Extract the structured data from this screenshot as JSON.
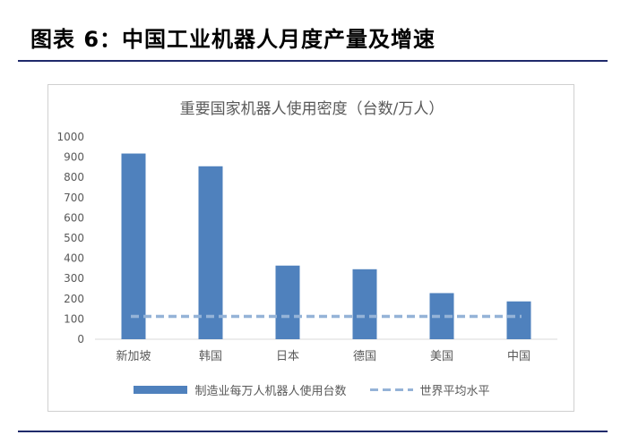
{
  "figure_title": "图表 6：中国工业机器人月度产量及增速",
  "chart_data": {
    "type": "bar",
    "title": "重要国家机器人使用密度（台数/万人）",
    "categories": [
      "新加坡",
      "韩国",
      "日本",
      "德国",
      "美国",
      "中国"
    ],
    "series": [
      {
        "name": "制造业每万人机器人使用台数",
        "values": [
          918,
          855,
          364,
          346,
          228,
          187
        ],
        "color": "#4f81bd"
      }
    ],
    "reference_line": {
      "name": "世界平均水平",
      "value": 113,
      "color": "#95b3d7",
      "style": "dashed"
    },
    "ylim": [
      0,
      1000
    ],
    "yticks": [
      0,
      100,
      200,
      300,
      400,
      500,
      600,
      700,
      800,
      900,
      1000
    ],
    "grid": false,
    "legend_position": "bottom"
  }
}
